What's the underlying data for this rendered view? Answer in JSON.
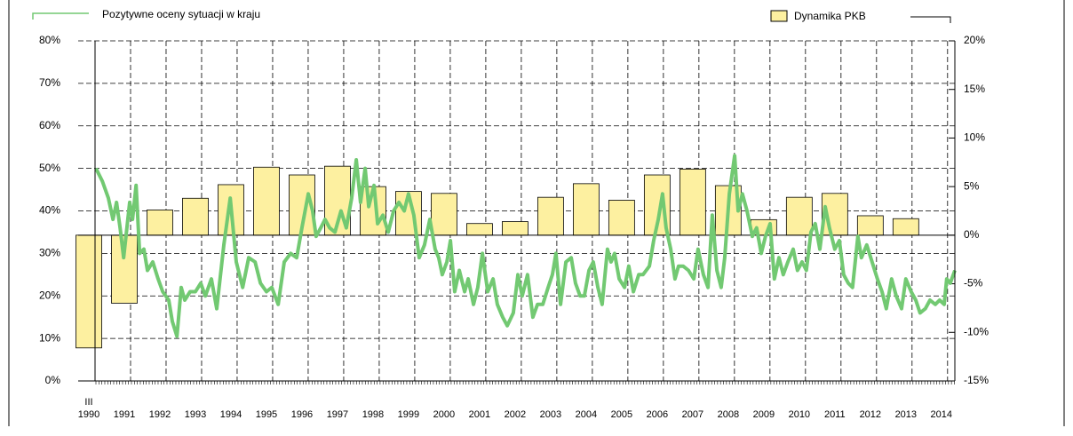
{
  "chart_data": {
    "type": "bar-line",
    "start_label": "III",
    "xlim": [
      1989.7,
      2014.38
    ],
    "xticks": [
      1990,
      1991,
      1992,
      1993,
      1994,
      1995,
      1996,
      1997,
      1998,
      1999,
      2000,
      2001,
      2002,
      2003,
      2004,
      2005,
      2006,
      2007,
      2008,
      2009,
      2010,
      2011,
      2012,
      2013,
      2014
    ],
    "ylim": [
      0,
      80
    ],
    "yticks": [
      {
        "value": 0,
        "label": "0%"
      },
      {
        "value": 10,
        "label": "10%"
      },
      {
        "value": 20,
        "label": "20%"
      },
      {
        "value": 30,
        "label": "30%"
      },
      {
        "value": 40,
        "label": "40%"
      },
      {
        "value": 50,
        "label": "50%"
      },
      {
        "value": 60,
        "label": "60%"
      },
      {
        "value": 70,
        "label": "70%"
      },
      {
        "value": 80,
        "label": "80%"
      }
    ],
    "y2lim": [
      -15,
      20
    ],
    "y2ticks": [
      {
        "value": -15,
        "label": "-15%"
      },
      {
        "value": -10,
        "label": "-10%"
      },
      {
        "value": -5,
        "label": "-5%"
      },
      {
        "value": 0,
        "label": "0%"
      },
      {
        "value": 5,
        "label": "5%"
      },
      {
        "value": 10,
        "label": "10%"
      },
      {
        "value": 15,
        "label": "15%"
      },
      {
        "value": 20,
        "label": "20%"
      }
    ],
    "grid": true,
    "series": [
      {
        "name": "Dynamika PKB",
        "type": "bar",
        "axis": "y2",
        "color": "#fdf0a0",
        "x": [
          1990,
          1991,
          1992,
          1993,
          1994,
          1995,
          1996,
          1997,
          1998,
          1999,
          2000,
          2001,
          2002,
          2003,
          2004,
          2005,
          2006,
          2007,
          2008,
          2009,
          2010,
          2011,
          2012,
          2013
        ],
        "values": [
          -11.6,
          -7.0,
          2.6,
          3.8,
          5.2,
          7.0,
          6.2,
          7.1,
          5.0,
          4.5,
          4.3,
          1.2,
          1.4,
          3.9,
          5.3,
          3.6,
          6.2,
          6.8,
          5.1,
          1.6,
          3.9,
          4.3,
          2.0,
          1.7
        ]
      },
      {
        "name": "Pozytywne oceny sytuacji w kraju",
        "type": "line",
        "axis": "y",
        "color": "#72c972",
        "x": [
          1990.2,
          1990.38,
          1990.55,
          1990.68,
          1990.78,
          1990.88,
          1990.98,
          1991.15,
          1991.23,
          1991.33,
          1991.43,
          1991.55,
          1991.65,
          1991.8,
          1991.95,
          1992.08,
          1992.25,
          1992.35,
          1992.48,
          1992.6,
          1992.7,
          1992.85,
          1993.0,
          1993.15,
          1993.28,
          1993.45,
          1993.6,
          1993.8,
          1993.98,
          1994.15,
          1994.33,
          1994.5,
          1994.68,
          1994.83,
          1995.0,
          1995.15,
          1995.33,
          1995.5,
          1995.68,
          1995.85,
          1996.0,
          1996.18,
          1996.3,
          1996.4,
          1996.53,
          1996.65,
          1996.78,
          1996.93,
          1997.1,
          1997.25,
          1997.4,
          1997.53,
          1997.65,
          1997.78,
          1997.88,
          1998.03,
          1998.13,
          1998.28,
          1998.43,
          1998.58,
          1998.73,
          1998.88,
          1999.0,
          1999.15,
          1999.3,
          1999.45,
          1999.6,
          1999.75,
          1999.85,
          1999.95,
          2000.08,
          2000.18,
          2000.3,
          2000.43,
          2000.58,
          2000.68,
          2000.83,
          2000.95,
          2001.08,
          2001.23,
          2001.38,
          2001.5,
          2001.65,
          2001.78,
          2001.95,
          2002.08,
          2002.2,
          2002.35,
          2002.5,
          2002.63,
          2002.78,
          2002.93,
          2003.05,
          2003.15,
          2003.28,
          2003.43,
          2003.58,
          2003.7,
          2003.83,
          2003.95,
          2004.08,
          2004.2,
          2004.33,
          2004.45,
          2004.6,
          2004.7,
          2004.8,
          2004.93,
          2005.08,
          2005.2,
          2005.33,
          2005.48,
          2005.6,
          2005.78,
          2005.9,
          2006.03,
          2006.15,
          2006.25,
          2006.38,
          2006.5,
          2006.6,
          2006.73,
          2006.88,
          2007.03,
          2007.15,
          2007.3,
          2007.43,
          2007.55,
          2007.68,
          2007.8,
          2007.9,
          2008.03,
          2008.18,
          2008.28,
          2008.4,
          2008.53,
          2008.68,
          2008.8,
          2008.93,
          2009.05,
          2009.18,
          2009.3,
          2009.43,
          2009.55,
          2009.68,
          2009.83,
          2009.95,
          2010.08,
          2010.2,
          2010.33,
          2010.45,
          2010.58,
          2010.73,
          2010.85,
          2011.0,
          2011.13,
          2011.25,
          2011.38,
          2011.5,
          2011.65,
          2011.75,
          2011.9,
          2012.05,
          2012.2,
          2012.33,
          2012.45,
          2012.6,
          2012.73,
          2012.88,
          2013.0,
          2013.15,
          2013.28,
          2013.4,
          2013.55,
          2013.68,
          2013.83,
          2013.95,
          2014.08,
          2014.15,
          2014.25,
          2014.38
        ],
        "values": [
          50,
          47,
          43,
          38,
          42,
          36,
          29,
          42,
          38,
          46,
          30,
          31,
          26,
          28,
          24,
          21,
          19,
          14,
          10.5,
          22,
          19,
          21,
          21,
          23,
          20,
          24,
          17,
          32,
          43,
          28,
          22,
          29,
          28,
          23,
          21,
          22,
          18,
          28,
          30,
          29,
          36,
          44,
          40,
          34,
          36,
          38,
          36,
          35,
          40,
          36,
          43,
          52,
          42,
          50,
          41,
          46,
          37,
          39,
          35,
          40,
          42,
          40,
          44,
          39,
          29,
          32,
          38,
          31,
          29,
          25,
          28,
          33,
          21,
          26,
          21,
          24,
          18,
          22,
          30,
          21,
          24,
          18,
          15,
          13,
          16,
          25,
          20,
          25,
          15,
          18,
          18,
          22,
          25,
          30,
          18,
          28,
          29,
          23,
          20,
          20,
          26,
          28,
          22,
          18,
          31,
          28,
          30,
          24,
          22,
          27,
          21,
          25,
          25,
          27,
          33,
          38,
          44,
          36,
          31,
          24,
          27,
          27,
          26,
          24,
          31,
          25,
          22,
          39,
          26,
          22,
          29,
          44,
          53,
          40,
          44,
          40,
          34,
          36,
          30,
          34,
          37,
          24,
          29,
          25,
          28,
          31,
          26,
          28,
          26,
          35,
          37,
          31,
          41,
          36,
          31,
          33,
          25,
          23,
          22,
          34,
          29,
          32,
          28,
          24,
          21,
          17,
          24,
          20,
          17,
          24,
          21,
          19,
          16,
          17,
          19,
          18,
          19,
          18,
          24,
          23,
          26
        ]
      }
    ]
  }
}
